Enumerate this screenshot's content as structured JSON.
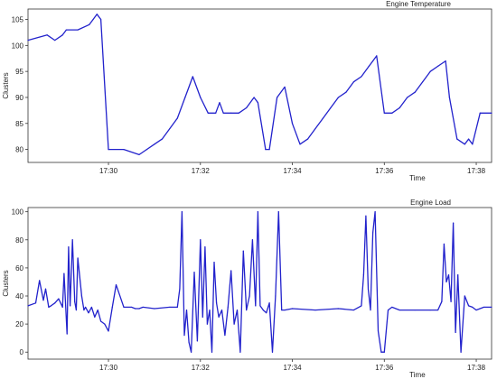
{
  "chart_data": [
    {
      "type": "line",
      "title": "Engine Temperature",
      "xlabel": "Time",
      "ylabel": "Clusters",
      "color": "#2222cc",
      "grid": false,
      "xlim": [
        "17:28:15",
        "17:38:20"
      ],
      "ylim": [
        77.5,
        107
      ],
      "yticks": [
        80,
        85,
        90,
        95,
        100,
        105
      ],
      "xticks": [
        "17:30",
        "17:32",
        "17:34",
        "17:36",
        "17:38"
      ],
      "x": [
        "17:28:15",
        "17:28:40",
        "17:28:50",
        "17:29:00",
        "17:29:05",
        "17:29:20",
        "17:29:35",
        "17:29:40",
        "17:29:45",
        "17:29:50",
        "17:30:00",
        "17:30:20",
        "17:30:40",
        "17:30:50",
        "17:31:00",
        "17:31:10",
        "17:31:20",
        "17:31:30",
        "17:31:40",
        "17:31:45",
        "17:31:50",
        "17:32:00",
        "17:32:10",
        "17:32:20",
        "17:32:25",
        "17:32:30",
        "17:32:40",
        "17:32:50",
        "17:33:00",
        "17:33:10",
        "17:33:15",
        "17:33:25",
        "17:33:30",
        "17:33:40",
        "17:33:50",
        "17:34:00",
        "17:34:10",
        "17:34:20",
        "17:34:30",
        "17:34:40",
        "17:34:50",
        "17:35:00",
        "17:35:10",
        "17:35:20",
        "17:35:30",
        "17:35:40",
        "17:35:45",
        "17:35:50",
        "17:36:00",
        "17:36:10",
        "17:36:20",
        "17:36:30",
        "17:36:40",
        "17:36:50",
        "17:37:00",
        "17:37:10",
        "17:37:20",
        "17:37:25",
        "17:37:35",
        "17:37:45",
        "17:37:50",
        "17:37:55",
        "17:38:05",
        "17:38:20"
      ],
      "y": [
        101,
        102,
        101,
        102,
        103,
        103,
        104,
        105,
        106,
        105,
        80,
        80,
        79,
        80,
        81,
        82,
        84,
        86,
        90,
        92,
        94,
        90,
        87,
        87,
        89,
        87,
        87,
        87,
        88,
        90,
        89,
        80,
        80,
        90,
        92,
        85,
        81,
        82,
        84,
        86,
        88,
        90,
        91,
        93,
        94,
        96,
        97,
        98,
        87,
        87,
        88,
        90,
        91,
        93,
        95,
        96,
        97,
        90,
        82,
        81,
        82,
        81,
        87,
        87
      ]
    },
    {
      "type": "line",
      "title": "Engine Load",
      "xlabel": "Time",
      "ylabel": "Clusters",
      "color": "#2222cc",
      "grid": false,
      "xlim": [
        "17:28:15",
        "17:38:20"
      ],
      "ylim": [
        -5,
        103
      ],
      "yticks": [
        0,
        20,
        40,
        60,
        80,
        100
      ],
      "xticks": [
        "17:30",
        "17:32",
        "17:34",
        "17:36",
        "17:38"
      ],
      "x": [
        "17:28:15",
        "17:28:25",
        "17:28:30",
        "17:28:35",
        "17:28:38",
        "17:28:42",
        "17:28:45",
        "17:28:50",
        "17:28:55",
        "17:29:00",
        "17:29:02",
        "17:29:06",
        "17:29:08",
        "17:29:10",
        "17:29:13",
        "17:29:16",
        "17:29:18",
        "17:29:20",
        "17:29:25",
        "17:29:28",
        "17:29:30",
        "17:29:34",
        "17:29:38",
        "17:29:42",
        "17:29:46",
        "17:29:50",
        "17:29:55",
        "17:30:00",
        "17:30:05",
        "17:30:10",
        "17:30:20",
        "17:30:30",
        "17:30:35",
        "17:30:40",
        "17:30:45",
        "17:31:00",
        "17:31:20",
        "17:31:30",
        "17:31:33",
        "17:31:36",
        "17:31:39",
        "17:31:42",
        "17:31:45",
        "17:31:48",
        "17:31:52",
        "17:31:56",
        "17:32:00",
        "17:32:03",
        "17:32:06",
        "17:32:09",
        "17:32:12",
        "17:32:15",
        "17:32:18",
        "17:32:21",
        "17:32:24",
        "17:32:28",
        "17:32:32",
        "17:32:36",
        "17:32:40",
        "17:32:44",
        "17:32:48",
        "17:32:52",
        "17:32:56",
        "17:33:00",
        "17:33:04",
        "17:33:08",
        "17:33:12",
        "17:33:15",
        "17:33:18",
        "17:33:22",
        "17:33:26",
        "17:33:30",
        "17:33:34",
        "17:33:38",
        "17:33:42",
        "17:33:46",
        "17:33:50",
        "17:34:00",
        "17:34:30",
        "17:35:00",
        "17:35:20",
        "17:35:30",
        "17:35:33",
        "17:35:36",
        "17:35:39",
        "17:35:42",
        "17:35:45",
        "17:35:48",
        "17:35:52",
        "17:35:56",
        "17:36:00",
        "17:36:05",
        "17:36:10",
        "17:36:20",
        "17:36:40",
        "17:37:00",
        "17:37:10",
        "17:37:15",
        "17:37:18",
        "17:37:21",
        "17:37:24",
        "17:37:27",
        "17:37:30",
        "17:37:33",
        "17:37:36",
        "17:37:40",
        "17:37:45",
        "17:37:50",
        "17:37:55",
        "17:38:00",
        "17:38:10",
        "17:38:20"
      ],
      "y": [
        33,
        35,
        51,
        37,
        45,
        32,
        33,
        35,
        38,
        32,
        56,
        13,
        75,
        33,
        80,
        36,
        30,
        67,
        40,
        30,
        32,
        28,
        32,
        25,
        30,
        22,
        20,
        15,
        32,
        48,
        32,
        32,
        31,
        31,
        32,
        31,
        32,
        32,
        45,
        100,
        12,
        30,
        7,
        0,
        57,
        8,
        80,
        25,
        75,
        20,
        30,
        0,
        64,
        35,
        25,
        30,
        12,
        32,
        58,
        20,
        30,
        0,
        72,
        30,
        40,
        80,
        33,
        100,
        33,
        30,
        28,
        35,
        0,
        40,
        100,
        30,
        30,
        31,
        30,
        31,
        30,
        33,
        55,
        97,
        45,
        30,
        85,
        100,
        15,
        0,
        0,
        30,
        32,
        30,
        30,
        30,
        30,
        36,
        77,
        50,
        55,
        36,
        92,
        14,
        55,
        0,
        40,
        33,
        32,
        30,
        32,
        32
      ]
    }
  ]
}
